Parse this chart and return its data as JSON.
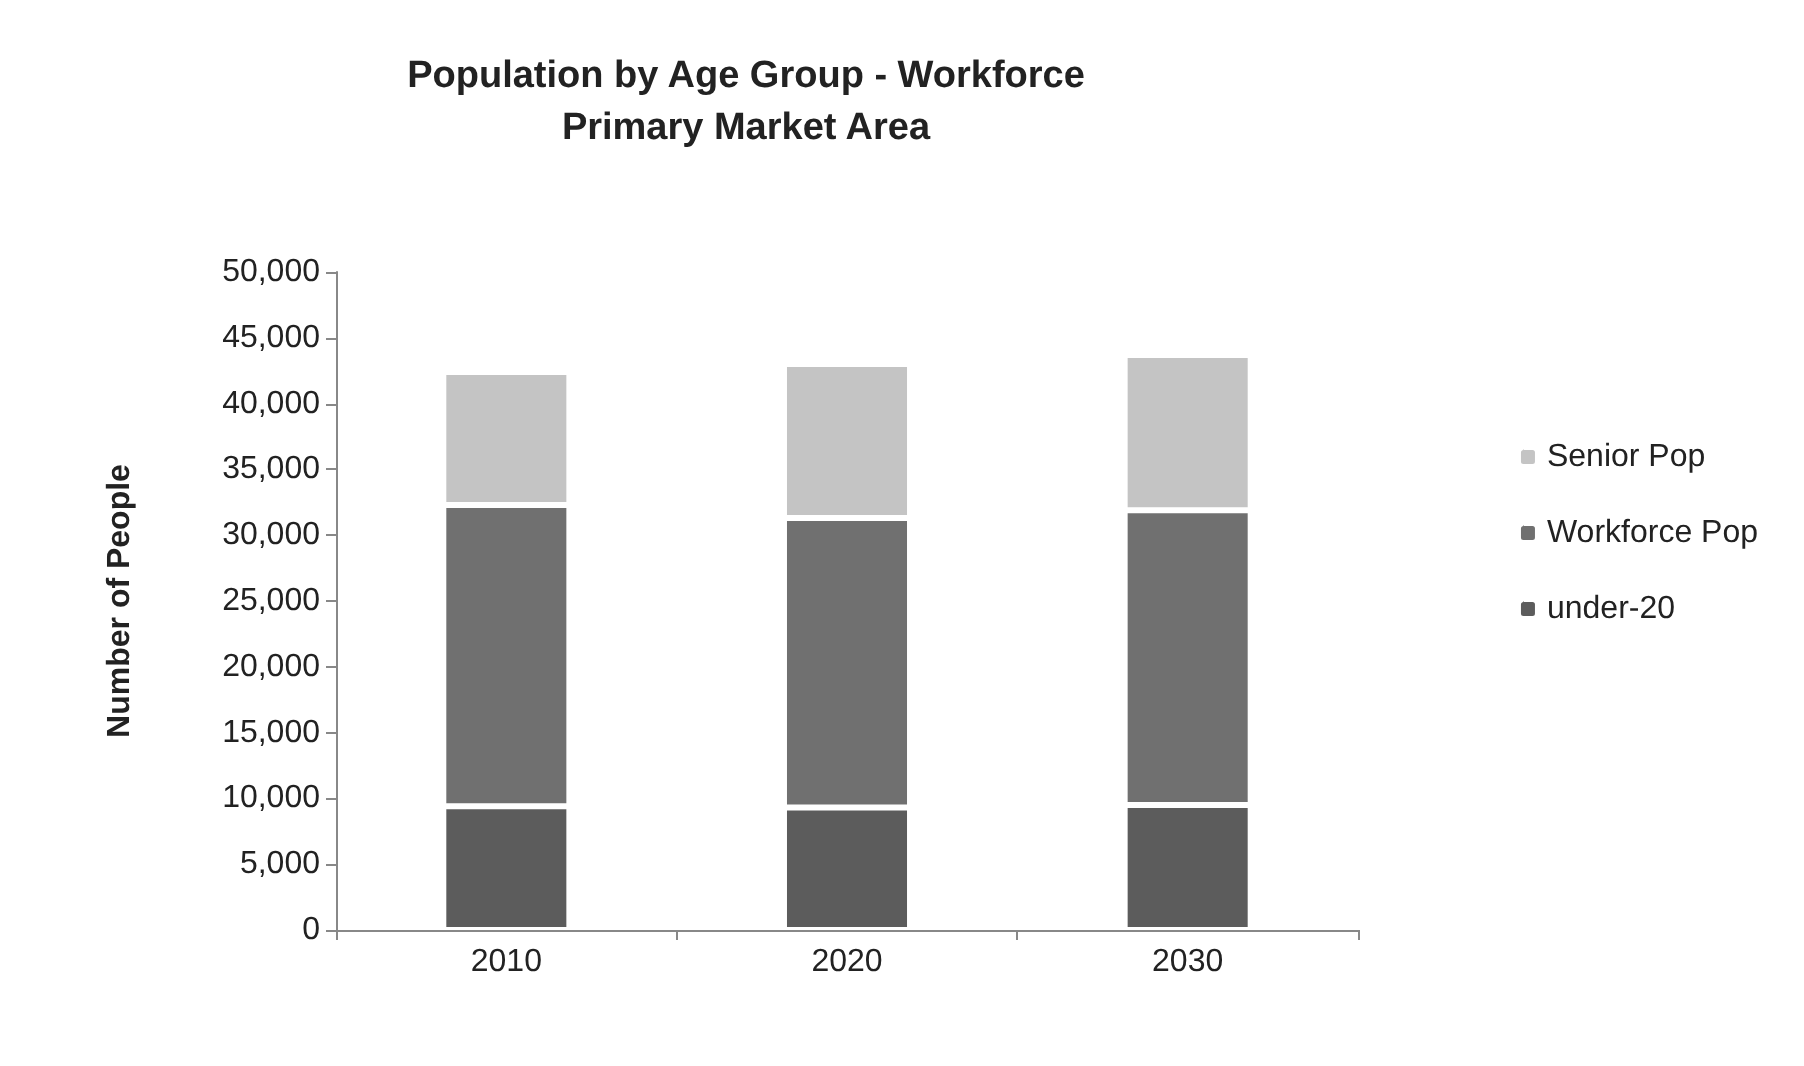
{
  "chart_data": {
    "type": "bar",
    "title": "Population by Age Group - Workforce\nPrimary Market Area",
    "ylabel": "Number of People",
    "categories": [
      "2010",
      "2020",
      "2030"
    ],
    "stacked": true,
    "series": [
      {
        "name": "under-20",
        "color": "#5c5c5c",
        "values": [
          9400,
          9300,
          9500
        ]
      },
      {
        "name": "Workforce Pop",
        "color": "#707070",
        "values": [
          22900,
          22000,
          22400
        ]
      },
      {
        "name": "Senior Pop",
        "color": "#c4c4c4",
        "values": [
          10100,
          11700,
          11800
        ]
      }
    ],
    "ylim": [
      0,
      50000
    ],
    "yticks": [
      0,
      {
        "value": 5000,
        "label": "5,000"
      },
      {
        "value": 10000,
        "label": "10,000"
      },
      {
        "value": 15000,
        "label": "15,000"
      },
      {
        "value": 20000,
        "label": "20,000"
      },
      {
        "value": 25000,
        "label": "25,000"
      },
      {
        "value": 30000,
        "label": "30,000"
      },
      {
        "value": 35000,
        "label": "35,000"
      },
      {
        "value": 40000,
        "label": "40,000"
      },
      {
        "value": 45000,
        "label": "45,000"
      },
      {
        "value": 50000,
        "label": "50,000"
      }
    ],
    "grid": false,
    "legend": "right"
  }
}
